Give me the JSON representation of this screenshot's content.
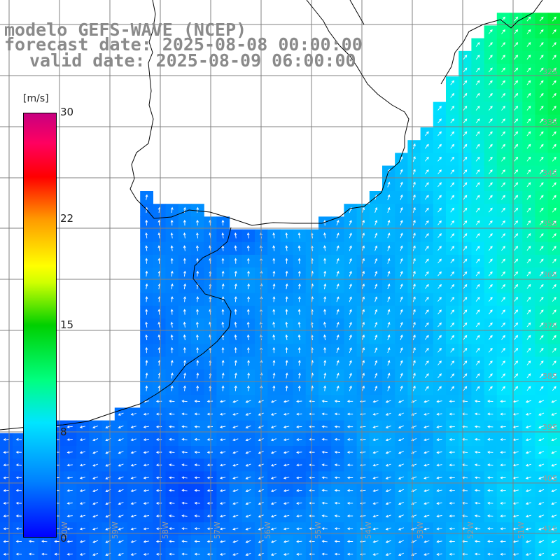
{
  "title": {
    "line1": "modelo GEFS-WAVE (NCEP)",
    "line2": "forecast date: 2025-08-08 00:00:00",
    "line3": "valid date: 2025-08-09 06:00:00"
  },
  "colorbar": {
    "unit": "[m/s]",
    "ticks": [
      "30",
      "22",
      "15",
      "8",
      "0"
    ],
    "colors": [
      "#0000ff",
      "#0080ff",
      "#00e5ff",
      "#00ff80",
      "#00d000",
      "#ffff00",
      "#ff9a00",
      "#ff0000",
      "#c80080"
    ]
  },
  "grid": {
    "lat_labels": [
      "32S",
      "33S",
      "34S",
      "35S",
      "36S",
      "37S",
      "38S",
      "39S",
      "40S",
      "41S"
    ],
    "lon_labels": [
      "60W",
      "59W",
      "58W",
      "57W",
      "56W",
      "55W",
      "54W",
      "53W",
      "52W",
      "51W"
    ]
  },
  "colors": {
    "land": "#ffffff",
    "coastline": "#000000",
    "grid": "#808080",
    "arrows": "#ffffff",
    "title_text": "#8a8a8a"
  }
}
